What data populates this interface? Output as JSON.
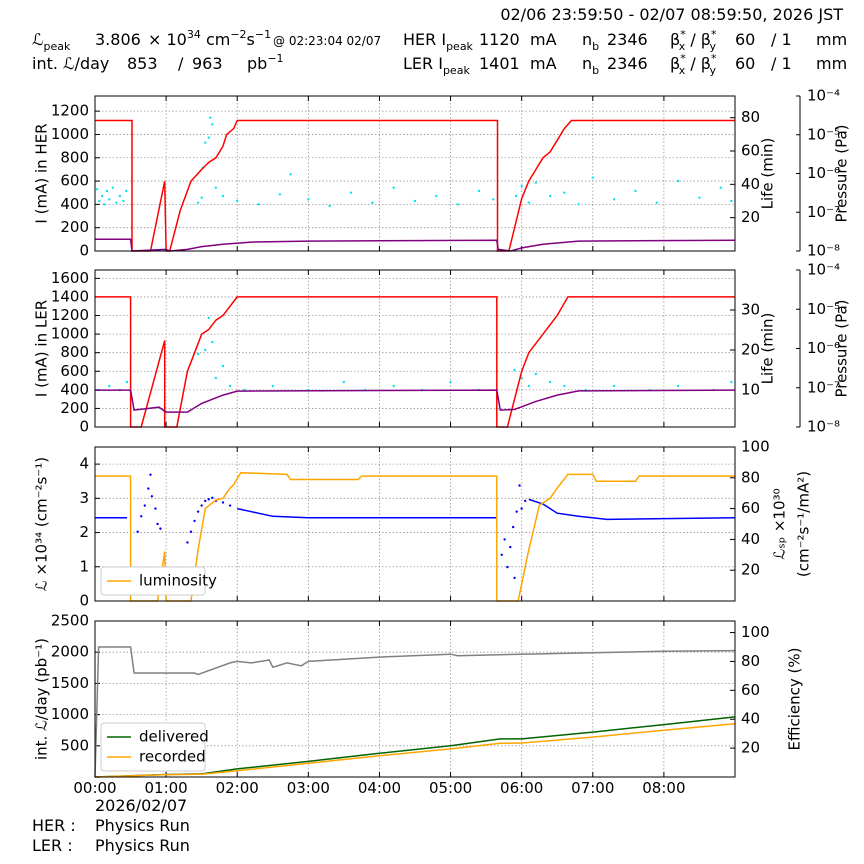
{
  "header": {
    "top": "02/06 23:59:50 - 02/07 08:59:50, 2026 JST",
    "row1": [
      [
        "ℒ",
        {
          "sub": "peak"
        }
      ],
      [
        "3.806"
      ],
      [
        "× 10",
        {
          "sup": "34"
        },
        " cm",
        {
          "sup": "−2"
        },
        "s",
        {
          "sup": "−1"
        }
      ],
      [
        "@ 02:23:04 02/07"
      ],
      [
        "HER I",
        {
          "sub": "peak"
        }
      ],
      [
        "1120"
      ],
      [
        "mA"
      ],
      [
        "n",
        {
          "sub": "b"
        }
      ],
      [
        "2346"
      ],
      [
        "β",
        {
          "sup": "*"
        },
        {
          "sub": "x"
        },
        " / β",
        {
          "sup": "*"
        },
        {
          "sub": "y"
        }
      ],
      [
        "60"
      ],
      [
        "/ 1"
      ],
      [
        "mm"
      ]
    ],
    "row2": [
      [
        "int. ℒ/day"
      ],
      [
        "853"
      ],
      [
        "/"
      ],
      [
        "963"
      ],
      [
        "pb",
        {
          "sup": "−1"
        }
      ],
      [
        "LER I",
        {
          "sub": "peak"
        }
      ],
      [
        "1401"
      ],
      [
        "mA"
      ],
      [
        "n",
        {
          "sub": "b"
        }
      ],
      [
        "2346"
      ],
      [
        "β",
        {
          "sup": "*"
        },
        {
          "sub": "x"
        },
        " / β",
        {
          "sup": "*"
        },
        {
          "sub": "y"
        }
      ],
      [
        "60"
      ],
      [
        "/ 1"
      ],
      [
        "mm"
      ]
    ]
  },
  "footer": {
    "date": "2026/02/07",
    "her_label": "HER :",
    "her_mode": "Physics Run",
    "ler_label": "LER :",
    "ler_mode": "Physics Run"
  },
  "chart_data": [
    {
      "type": "line",
      "ylabel": "I (mA) in HER",
      "y2label": "Life (min)",
      "y3label": "Pressure (Pa)",
      "grid": true,
      "xlim": [
        0,
        9
      ],
      "xticks": [
        0,
        1,
        2,
        3,
        4,
        5,
        6,
        7,
        8
      ],
      "ylim": [
        0,
        1330
      ],
      "yticks": [
        0,
        200,
        400,
        600,
        800,
        1000,
        1200
      ],
      "y2lim": [
        0,
        93
      ],
      "y2ticks": [
        20,
        40,
        60,
        80
      ],
      "y3lim": [
        1e-08,
        0.0001
      ],
      "y3scale": "log",
      "y3ticks": [
        {
          "value": 1e-08,
          "label": "10⁻⁸"
        },
        {
          "value": 1e-07,
          "label": "10⁻⁷"
        },
        {
          "value": 1e-06,
          "label": "10⁻⁶"
        },
        {
          "value": 1e-05,
          "label": "10⁻⁵"
        },
        {
          "value": 0.0001,
          "label": "10⁻⁴"
        }
      ],
      "series": [
        {
          "color": "#00e5ee",
          "axis": "y2",
          "style": "dots",
          "x": [
            0.03,
            0.06,
            0.1,
            0.13,
            0.17,
            0.2,
            0.25,
            0.3,
            0.35,
            0.4,
            0.44,
            1.45,
            1.5,
            1.52,
            1.55,
            1.6,
            1.62,
            1.65,
            1.7,
            1.8,
            2.0,
            2.3,
            2.6,
            2.75,
            3.0,
            3.3,
            3.6,
            3.9,
            4.2,
            4.5,
            4.8,
            5.1,
            5.4,
            5.6,
            5.92,
            6.0,
            6.1,
            6.2,
            6.4,
            6.6,
            6.8,
            7.0,
            7.3,
            7.6,
            7.9,
            8.2,
            8.5,
            8.8,
            8.95
          ],
          "values": [
            37,
            30,
            33,
            28,
            36,
            31,
            38,
            29,
            33,
            30,
            36,
            29,
            32,
            50,
            65,
            68,
            80,
            76,
            38,
            33,
            30,
            28,
            34,
            46,
            31,
            27,
            35,
            29,
            38,
            30,
            33,
            28,
            36,
            31,
            33,
            39,
            29,
            41,
            33,
            35,
            28,
            44,
            31,
            36,
            29,
            42,
            32,
            38,
            30
          ]
        },
        {
          "color": "#ff0000",
          "axis": "y",
          "x": [
            0,
            0.52,
            0.52,
            0.78,
            0.98,
            1.0,
            1.05,
            1.2,
            1.35,
            1.5,
            1.6,
            1.7,
            1.8,
            1.85,
            1.95,
            2.0,
            5.66,
            5.66,
            5.82,
            6.0,
            6.1,
            6.2,
            6.3,
            6.4,
            6.5,
            6.6,
            6.7,
            9.0
          ],
          "values": [
            1120,
            1120,
            0,
            0,
            600,
            0,
            0,
            350,
            600,
            700,
            760,
            800,
            900,
            1000,
            1050,
            1120,
            1120,
            0,
            0,
            450,
            600,
            700,
            800,
            850,
            950,
            1050,
            1120,
            1120
          ]
        },
        {
          "color": "#800080",
          "axis": "y3",
          "x": [
            0,
            0.5,
            0.52,
            1.0,
            1.05,
            1.3,
            1.5,
            1.8,
            2.2,
            3.0,
            5.65,
            5.67,
            5.85,
            6.0,
            6.3,
            6.8,
            9
          ],
          "values": [
            2e-08,
            2e-08,
            1e-08,
            1.1e-08,
            1e-08,
            1.1e-08,
            1.3e-08,
            1.5e-08,
            1.7e-08,
            1.8e-08,
            1.9e-08,
            1.1e-08,
            1e-08,
            1.2e-08,
            1.5e-08,
            1.8e-08,
            1.9e-08
          ]
        }
      ]
    },
    {
      "type": "line",
      "ylabel": "I (mA) in LER",
      "y2label": "Life (min)",
      "y3label": "Pressure (Pa)",
      "grid": true,
      "xlim": [
        0,
        9
      ],
      "xticks": [
        0,
        1,
        2,
        3,
        4,
        5,
        6,
        7,
        8
      ],
      "ylim": [
        0,
        1690
      ],
      "yticks": [
        0,
        200,
        400,
        600,
        800,
        1000,
        1200,
        1400,
        1600
      ],
      "y2lim": [
        0.75,
        40
      ],
      "y2ticks": [
        10,
        20,
        30
      ],
      "y3lim": [
        1e-08,
        0.0001
      ],
      "y3scale": "log",
      "y3ticks": [
        {
          "value": 1e-08,
          "label": "10⁻⁸"
        },
        {
          "value": 1e-07,
          "label": "10⁻⁷"
        },
        {
          "value": 1e-06,
          "label": "10⁻⁶"
        },
        {
          "value": 1e-05,
          "label": "10⁻⁵"
        },
        {
          "value": 0.0001,
          "label": "10⁻⁴"
        }
      ],
      "series": [
        {
          "color": "#00e5ee",
          "axis": "y2",
          "style": "dots",
          "x": [
            0.05,
            0.2,
            0.35,
            0.45,
            1.45,
            1.55,
            1.6,
            1.65,
            1.7,
            1.8,
            1.9,
            2.1,
            2.5,
            3.0,
            3.5,
            3.8,
            4.2,
            4.6,
            5.0,
            5.4,
            5.9,
            6.0,
            6.1,
            6.2,
            6.4,
            6.6,
            6.9,
            7.3,
            7.8,
            8.2,
            8.7,
            8.95
          ],
          "values": [
            10,
            11,
            10,
            12,
            19,
            20,
            28,
            22,
            13,
            16,
            11,
            10,
            11,
            10,
            12,
            10,
            11,
            10,
            12,
            10,
            15,
            13,
            11,
            14,
            12,
            11,
            10,
            11,
            10,
            11,
            10,
            12
          ]
        },
        {
          "color": "#ff0000",
          "axis": "y",
          "x": [
            0,
            0.5,
            0.5,
            0.65,
            0.98,
            0.98,
            1.15,
            1.3,
            1.4,
            1.5,
            1.6,
            1.7,
            1.8,
            1.9,
            2.0,
            5.65,
            5.65,
            5.8,
            6.0,
            6.1,
            6.3,
            6.4,
            6.5,
            6.65,
            9
          ],
          "values": [
            1400,
            1400,
            0,
            0,
            930,
            0,
            0,
            600,
            800,
            1000,
            1050,
            1150,
            1200,
            1300,
            1400,
            1400,
            0,
            0,
            600,
            800,
            1000,
            1100,
            1200,
            1400,
            1400
          ]
        },
        {
          "color": "#800080",
          "axis": "y3",
          "x": [
            0,
            0.5,
            0.55,
            0.9,
            1.0,
            1.3,
            1.5,
            1.8,
            2.0,
            5.65,
            5.7,
            5.9,
            6.2,
            6.5,
            6.8,
            9
          ],
          "values": [
            8.7e-08,
            8.7e-08,
            2.7e-08,
            3.2e-08,
            2.4e-08,
            2.4e-08,
            4e-08,
            6.5e-08,
            8.2e-08,
            8.7e-08,
            2.7e-08,
            2.8e-08,
            4.5e-08,
            6.5e-08,
            8.3e-08,
            8.7e-08
          ]
        }
      ]
    },
    {
      "type": "line",
      "ylabel": "ℒ ×10³⁴ (cm⁻²s⁻¹)",
      "y2label": [
        "ℒₛₚ ×10³⁰",
        "(cm⁻²s⁻¹/mA²)"
      ],
      "grid": true,
      "legend": "lower left",
      "xlim": [
        0,
        9
      ],
      "xticks": [
        0,
        1,
        2,
        3,
        4,
        5,
        6,
        7,
        8
      ],
      "ylim": [
        0,
        4.5
      ],
      "yticks": [
        0,
        1,
        2,
        3,
        4
      ],
      "y2lim": [
        0,
        100
      ],
      "y2ticks": [
        20,
        40,
        60,
        80,
        100
      ],
      "series": [
        {
          "color": "#0000ff",
          "axis": "y2",
          "x": [
            0,
            0.45,
            0.5,
            2.0,
            2.2,
            2.5,
            3.0,
            5.65,
            5.7,
            6.1,
            6.3,
            6.5,
            6.8,
            7.2,
            9
          ],
          "values": [
            54,
            54,
            null,
            60,
            58,
            55,
            54,
            54,
            null,
            66,
            63,
            57,
            55,
            53,
            54
          ]
        },
        {
          "color": "#0000ff",
          "axis": "y2",
          "style": "dots",
          "x": [
            0.6,
            0.65,
            0.7,
            0.75,
            0.78,
            0.8,
            0.85,
            0.88,
            0.92,
            1.3,
            1.35,
            1.4,
            1.45,
            1.5,
            1.55,
            1.6,
            1.65,
            1.7,
            1.8,
            1.9,
            5.72,
            5.76,
            5.8,
            5.84,
            5.88,
            5.9,
            5.93,
            5.97,
            6.0,
            6.05
          ],
          "values": [
            45,
            55,
            62,
            73,
            82,
            68,
            60,
            50,
            47,
            38,
            45,
            52,
            58,
            62,
            65,
            66,
            67,
            65,
            64,
            62,
            30,
            40,
            22,
            35,
            48,
            15,
            58,
            75,
            60,
            65
          ]
        },
        {
          "name": "luminosity",
          "color": "#ffa500",
          "axis": "y",
          "x": [
            0,
            0.5,
            0.5,
            0.88,
            0.98,
            1.0,
            1.35,
            1.45,
            1.55,
            1.7,
            1.8,
            1.9,
            1.95,
            2.05,
            2.7,
            2.75,
            3.7,
            3.75,
            5.65,
            5.65,
            5.95,
            6.1,
            6.25,
            6.4,
            6.5,
            6.65,
            7.0,
            7.05,
            7.6,
            7.65,
            9
          ],
          "values": [
            3.65,
            3.65,
            0,
            0,
            1.45,
            0,
            0,
            1.5,
            2.7,
            2.95,
            3.0,
            3.3,
            3.4,
            3.75,
            3.7,
            3.55,
            3.55,
            3.65,
            3.65,
            0,
            0,
            1.5,
            2.8,
            3.0,
            3.3,
            3.7,
            3.7,
            3.5,
            3.5,
            3.65,
            3.65
          ]
        }
      ]
    },
    {
      "type": "line",
      "ylabel": "int. ℒ/day (pb⁻¹)",
      "y2label": "Efficiency (%)",
      "grid": true,
      "legend": "lower left",
      "xlim": [
        0,
        9
      ],
      "xticks": [
        {
          "value": 0,
          "label": "00:00"
        },
        {
          "value": 1,
          "label": "01:00"
        },
        {
          "value": 2,
          "label": "02:00"
        },
        {
          "value": 3,
          "label": "03:00"
        },
        {
          "value": 4,
          "label": "04:00"
        },
        {
          "value": 5,
          "label": "05:00"
        },
        {
          "value": 6,
          "label": "06:00"
        },
        {
          "value": 7,
          "label": "07:00"
        },
        {
          "value": 8,
          "label": "08:00"
        }
      ],
      "ylim": [
        0,
        2500
      ],
      "yticks": [
        500,
        1000,
        1500,
        2000,
        2500
      ],
      "y2lim": [
        0,
        108
      ],
      "y2ticks": [
        20,
        40,
        60,
        80,
        100
      ],
      "series": [
        {
          "color": "#808080",
          "axis": "y2",
          "x": [
            0,
            0.05,
            0.4,
            0.5,
            0.55,
            1.4,
            1.45,
            1.9,
            2.0,
            2.2,
            2.45,
            2.5,
            2.7,
            2.9,
            3.0,
            4.0,
            5.0,
            5.1,
            6.0,
            7.0,
            8.0,
            9.0
          ],
          "values": [
            0,
            90,
            90,
            90,
            72,
            72,
            71,
            79,
            80,
            79,
            81,
            76,
            79,
            77,
            80,
            83,
            85,
            84,
            85,
            86,
            87,
            87.5
          ]
        },
        {
          "name": "delivered",
          "color": "#006400",
          "axis": "y",
          "x": [
            0,
            0.5,
            1,
            1.5,
            2,
            3,
            4,
            5,
            5.7,
            6.0,
            7,
            8,
            9
          ],
          "values": [
            0,
            20,
            40,
            50,
            130,
            250,
            380,
            500,
            610,
            610,
            720,
            840,
            963
          ]
        },
        {
          "name": "recorded",
          "color": "#ffa500",
          "axis": "y",
          "x": [
            0,
            0.5,
            1,
            1.5,
            2,
            3,
            4,
            5,
            5.7,
            6.0,
            7,
            8,
            9
          ],
          "values": [
            0,
            18,
            38,
            45,
            100,
            220,
            340,
            450,
            540,
            545,
            640,
            750,
            853
          ]
        }
      ]
    }
  ]
}
